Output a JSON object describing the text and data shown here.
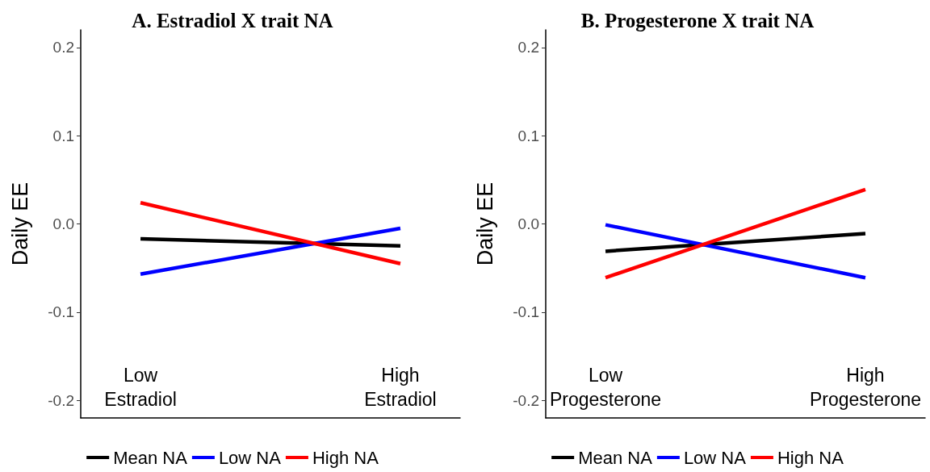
{
  "chart_data": [
    {
      "type": "line",
      "title": "A. Estradiol X trait NA",
      "ylabel": "Daily EE",
      "categories": [
        "Low\nEstradiol",
        "High\nEstradiol"
      ],
      "series": [
        {
          "name": "Mean NA",
          "color": "#000000",
          "values": [
            -0.017,
            -0.025
          ]
        },
        {
          "name": "Low NA",
          "color": "#0000ff",
          "values": [
            -0.057,
            -0.005
          ]
        },
        {
          "name": "High NA",
          "color": "#ff0000",
          "values": [
            0.024,
            -0.045
          ]
        }
      ],
      "ylim": [
        -0.22,
        0.22
      ],
      "yticks": [
        -0.2,
        -0.1,
        {
          "value": 0,
          "label": "0.0"
        },
        0.1,
        0.2
      ],
      "grid": false,
      "legend": "bottom",
      "marker": "none",
      "line_style": "solid"
    },
    {
      "type": "line",
      "title": "B. Progesterone X trait NA",
      "ylabel": "Daily EE",
      "categories": [
        "Low\nProgesterone",
        "High\nProgesterone"
      ],
      "series": [
        {
          "name": "Mean NA",
          "color": "#000000",
          "values": [
            -0.031,
            -0.011
          ]
        },
        {
          "name": "Low NA",
          "color": "#0000ff",
          "values": [
            -0.001,
            -0.061
          ]
        },
        {
          "name": "High NA",
          "color": "#ff0000",
          "values": [
            -0.061,
            0.039
          ]
        }
      ],
      "ylim": [
        -0.22,
        0.22
      ],
      "yticks": [
        -0.2,
        -0.1,
        {
          "value": 0,
          "label": "0.0"
        },
        0.1,
        0.2
      ],
      "grid": false,
      "legend": "bottom",
      "marker": "none",
      "line_style": "solid"
    }
  ]
}
